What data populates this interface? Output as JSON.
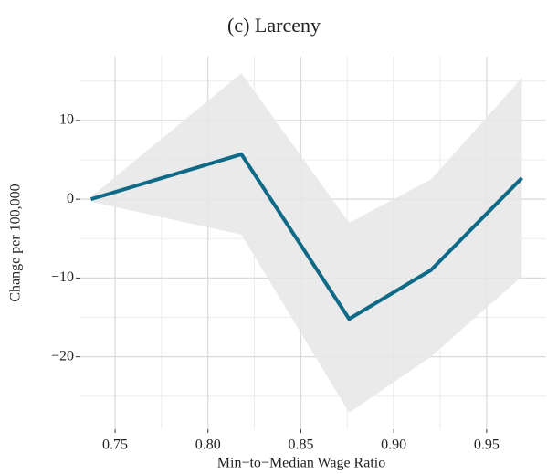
{
  "chart_data": {
    "type": "line",
    "title": "(c) Larceny",
    "x_label": "Min−to−Median Wage Ratio",
    "y_label": "Change per 100,000",
    "x": [
      0.737,
      0.818,
      0.876,
      0.92,
      0.969
    ],
    "series": [
      {
        "color": "#0f6a87",
        "values": [
          0,
          5.7,
          -15.2,
          -9.0,
          2.7
        ]
      }
    ],
    "band": {
      "color": "#e6e6e6",
      "upper": [
        0.3,
        16.0,
        -3.0,
        2.5,
        15.4
      ],
      "lower": [
        -0.3,
        -4.5,
        -27.1,
        -20.0,
        -9.8
      ]
    },
    "xlim": [
      0.7313,
      0.982
    ],
    "ylim": [
      -29.2,
      18.1
    ],
    "xticks": [
      {
        "value": 0.75,
        "label": "0.75"
      },
      {
        "value": 0.8,
        "label": "0.80"
      },
      {
        "value": 0.85,
        "label": "0.85"
      },
      {
        "value": 0.9,
        "label": "0.90"
      },
      {
        "value": 0.95,
        "label": "0.95"
      }
    ],
    "xminorticks": [
      0.775,
      0.825,
      0.875,
      0.925
    ],
    "yticks": [
      {
        "value": -20,
        "label": "−20"
      },
      {
        "value": -10,
        "label": "−10"
      },
      0,
      10
    ],
    "yminorticks": [
      -25,
      -15,
      -5,
      5,
      15
    ],
    "grid": true
  }
}
